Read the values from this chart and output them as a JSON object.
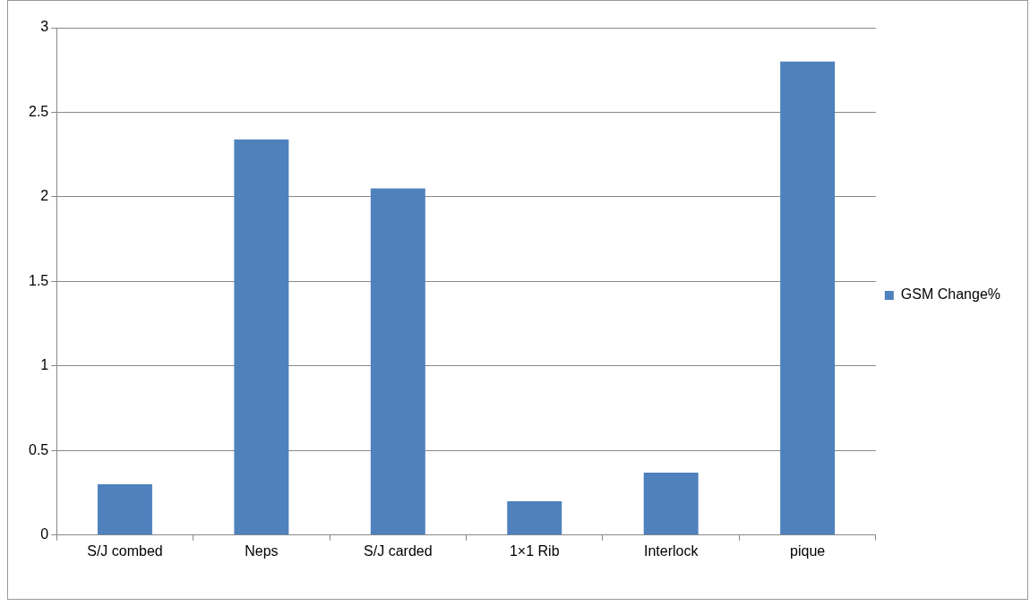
{
  "chart_data": {
    "type": "bar",
    "categories": [
      "S/J combed",
      "Neps",
      "S/J carded",
      "1×1 Rib",
      "Interlock",
      "pique"
    ],
    "series": [
      {
        "name": "GSM Change%",
        "color": "#4f81bd",
        "values": [
          0.3,
          2.34,
          2.05,
          0.2,
          0.37,
          2.8
        ]
      }
    ],
    "ylim": [
      0,
      3
    ],
    "yticks": [
      0,
      0.5,
      1,
      1.5,
      2,
      2.5,
      3
    ],
    "grid": "y",
    "legend": "right"
  }
}
